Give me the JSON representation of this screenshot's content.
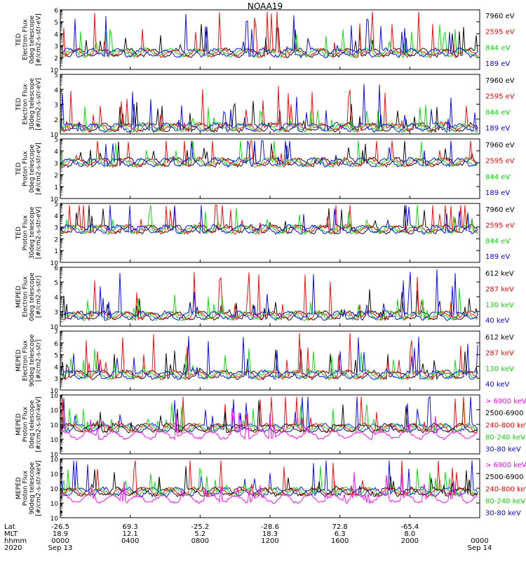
{
  "title": "NOAA19",
  "chart_data": [
    {
      "type": "line",
      "ylabel": [
        "TED",
        "Electron Flux",
        "0deg telescope",
        "[#/cm2-s-str-eV]"
      ],
      "ylim": [
        10,
        1000000
      ],
      "yscale": "log",
      "yticks": [
        {
          "v": 10,
          "t": "10"
        },
        {
          "v": 100,
          "t": "2"
        },
        {
          "v": 1000,
          "t": "3"
        },
        {
          "v": 10000,
          "t": "4"
        },
        {
          "v": 100000,
          "t": "5"
        },
        {
          "v": 1000000,
          "t": "6"
        }
      ],
      "legend": [
        {
          "name": "7960 eV",
          "color": "#000000"
        },
        {
          "name": "2595 eV",
          "color": "#ff0000"
        },
        {
          "name": "844 eV",
          "color": "#00dd00"
        },
        {
          "name": "189 eV",
          "color": "#0000ff"
        }
      ]
    },
    {
      "type": "line",
      "ylabel": [
        "TED",
        "Electron Flux",
        "30deg telescope",
        "[#/cm2-s-str-eV]"
      ],
      "ylim": [
        10,
        100000
      ],
      "yscale": "log",
      "yticks": [
        {
          "v": 10,
          "t": "10"
        },
        {
          "v": 100,
          "t": "2"
        },
        {
          "v": 1000,
          "t": "3"
        },
        {
          "v": 10000,
          "t": "4"
        },
        {
          "v": 100000,
          "t": "5"
        }
      ],
      "legend": [
        {
          "name": "7960 eV",
          "color": "#000000"
        },
        {
          "name": "2595 eV",
          "color": "#ff0000"
        },
        {
          "name": "844 eV",
          "color": "#00dd00"
        },
        {
          "name": "189 eV",
          "color": "#0000ff"
        }
      ]
    },
    {
      "type": "line",
      "ylabel": [
        "TED",
        "Proton Flux",
        "0deg telescope",
        "[#/cm2-s-str-eV]"
      ],
      "ylim": [
        1,
        100000
      ],
      "yscale": "log",
      "yticks": [
        {
          "v": 1,
          "t": "10"
        },
        {
          "v": 10,
          "t": "1"
        },
        {
          "v": 100,
          "t": "2"
        },
        {
          "v": 1000,
          "t": "3"
        },
        {
          "v": 10000,
          "t": "4"
        },
        {
          "v": 100000,
          "t": "5"
        }
      ],
      "legend": [
        {
          "name": "7960 eV",
          "color": "#000000"
        },
        {
          "name": "2595 eV",
          "color": "#ff0000"
        },
        {
          "name": "844 eV",
          "color": "#00dd00"
        },
        {
          "name": "189 eV",
          "color": "#0000ff"
        }
      ]
    },
    {
      "type": "line",
      "ylabel": [
        "TED",
        "Proton Flux",
        "30deg telescope",
        "[#/cm2-s-str-eV]"
      ],
      "ylim": [
        1,
        100000
      ],
      "yscale": "log",
      "yticks": [
        {
          "v": 1,
          "t": "10"
        },
        {
          "v": 10,
          "t": "1"
        },
        {
          "v": 100,
          "t": "2"
        },
        {
          "v": 1000,
          "t": "3"
        },
        {
          "v": 10000,
          "t": "4"
        },
        {
          "v": 100000,
          "t": "5"
        }
      ],
      "legend": [
        {
          "name": "7960 eV",
          "color": "#000000"
        },
        {
          "name": "2595 eV",
          "color": "#ff0000"
        },
        {
          "name": "844 eV",
          "color": "#00dd00"
        },
        {
          "name": "189 eV",
          "color": "#0000ff"
        }
      ]
    },
    {
      "type": "line",
      "ylabel": [
        "MEPED",
        "Electron Flux",
        "0deg telescope",
        "[#/cm2-s-str]"
      ],
      "ylim": [
        100,
        1000000
      ],
      "yscale": "log",
      "yticks": [
        {
          "v": 100,
          "t": "10"
        },
        {
          "v": 1000,
          "t": "3"
        },
        {
          "v": 10000,
          "t": "4"
        },
        {
          "v": 100000,
          "t": "5"
        },
        {
          "v": 1000000,
          "t": "6"
        }
      ],
      "legend": [
        {
          "name": "612 keV",
          "color": "#000000"
        },
        {
          "name": "287 keV",
          "color": "#ff0000"
        },
        {
          "name": "130 keV",
          "color": "#00dd00"
        },
        {
          "name": "40 keV",
          "color": "#0000ff"
        }
      ]
    },
    {
      "type": "line",
      "ylabel": [
        "MEPED",
        "Electron Flux",
        "90deg telescope",
        "[#/cm2-s-str]"
      ],
      "ylim": [
        100,
        10000000
      ],
      "yscale": "log",
      "yticks": [
        {
          "v": 100,
          "t": "10"
        },
        {
          "v": 1000,
          "t": "3"
        },
        {
          "v": 10000,
          "t": "4"
        },
        {
          "v": 100000,
          "t": "5"
        },
        {
          "v": 1000000,
          "t": "6"
        },
        {
          "v": 10000000,
          "t": "7"
        }
      ],
      "legend": [
        {
          "name": "612 keV",
          "color": "#000000"
        },
        {
          "name": "287 keV",
          "color": "#ff0000"
        },
        {
          "name": "130 keV",
          "color": "#00dd00"
        },
        {
          "name": "40 keV",
          "color": "#0000ff"
        }
      ]
    },
    {
      "type": "line",
      "ylabel": [
        "MEPED",
        "Proton Flux",
        "0deg telescope",
        "[#/cm2-s-str-keV]"
      ],
      "ylim": [
        0.01,
        1000000
      ],
      "yscale": "log",
      "yticks": [
        {
          "v": 0.01,
          "t": "10"
        },
        {
          "v": 1,
          "t": "10"
        },
        {
          "v": 100,
          "t": "10"
        },
        {
          "v": 10000,
          "t": "10"
        },
        {
          "v": 1000000,
          "t": "10"
        }
      ],
      "legend": [
        {
          "name": "> 6900 keV",
          "color": "#ff00ff"
        },
        {
          "name": "2500-6900",
          "color": "#000000"
        },
        {
          "name": "240-800 keV",
          "color": "#ff0000"
        },
        {
          "name": "80-240 keV",
          "color": "#00dd00"
        },
        {
          "name": "30-80 keV",
          "color": "#0000ff"
        }
      ]
    },
    {
      "type": "line",
      "ylabel": [
        "MEPED",
        "Proton Flux",
        "90deg telescope",
        "[#/cm2-s-str-keV]"
      ],
      "ylim": [
        0.01,
        1000000
      ],
      "yscale": "log",
      "yticks": [
        {
          "v": 0.01,
          "t": "10"
        },
        {
          "v": 1,
          "t": "10"
        },
        {
          "v": 100,
          "t": "10"
        },
        {
          "v": 10000,
          "t": "10"
        },
        {
          "v": 1000000,
          "t": "10"
        }
      ],
      "legend": [
        {
          "name": "> 6900 keV",
          "color": "#ff00ff"
        },
        {
          "name": "2500-6900",
          "color": "#000000"
        },
        {
          "name": "240-800 keV",
          "color": "#ff0000"
        },
        {
          "name": "80-240 keV",
          "color": "#00dd00"
        },
        {
          "name": "30-80 keV",
          "color": "#0000ff"
        }
      ]
    }
  ],
  "x_axis": {
    "row_labels": [
      "Lat",
      "MLT",
      "hhmm",
      "2020"
    ],
    "ticks": [
      {
        "lat": "-26.5",
        "mlt": "18.9",
        "hhmm": "0000",
        "date": "Sep 13"
      },
      {
        "lat": "69.3",
        "mlt": "12.1",
        "hhmm": "0400",
        "date": ""
      },
      {
        "lat": "-25.2",
        "mlt": "5.2",
        "hhmm": "0800",
        "date": ""
      },
      {
        "lat": "-28.6",
        "mlt": "18.3",
        "hhmm": "1200",
        "date": ""
      },
      {
        "lat": "72.8",
        "mlt": "6.3",
        "hhmm": "1600",
        "date": ""
      },
      {
        "lat": "-65.4",
        "mlt": "8.0",
        "hhmm": "2000",
        "date": ""
      },
      {
        "lat": "",
        "mlt": "",
        "hhmm": "0000",
        "date": "Sep 14"
      }
    ]
  }
}
